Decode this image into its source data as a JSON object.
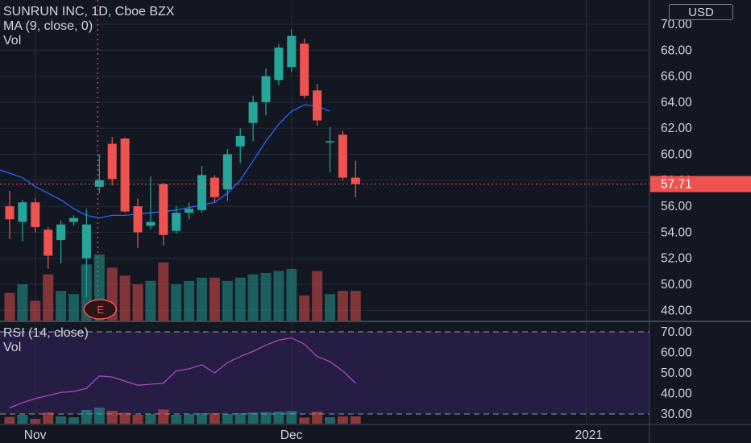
{
  "legend": {
    "title": "SUNRUN INC, 1D, Cboe BZX",
    "ma": "MA (9, close, 0)",
    "vol": "Vol",
    "rsi": "RSI (14, close)",
    "rsi_vol": "Vol"
  },
  "currency": "USD",
  "colors": {
    "background": "#131722",
    "up": "#26a69a",
    "down": "#ef5350",
    "ma": "#2962ff",
    "rsi_line": "#ab47bc",
    "rsi_band": "#2a1f4a",
    "price_marker": "#ef5350",
    "earnings_marker": "#ef5350"
  },
  "earnings_badge": "E",
  "last_price": "57.71",
  "x_axis": {
    "labels": [
      {
        "text": "Nov",
        "bar": 2
      },
      {
        "text": "Dec",
        "bar": 22
      },
      {
        "text": "2021",
        "bar": 45
      }
    ]
  },
  "chart_data": [
    {
      "type": "candlestick",
      "title": "SUNRUN INC, 1D, Cboe BZX",
      "ylim": [
        47,
        71
      ],
      "y_ticks": [
        "48.00",
        "50.00",
        "52.00",
        "54.00",
        "56.00",
        "58.00",
        "60.00",
        "62.00",
        "64.00",
        "66.00",
        "68.00",
        "70.00"
      ],
      "candles": [
        {
          "o": 56.0,
          "h": 57.2,
          "l": 53.5,
          "c": 55.0
        },
        {
          "o": 54.8,
          "h": 56.5,
          "l": 53.3,
          "c": 56.3
        },
        {
          "o": 56.3,
          "h": 56.6,
          "l": 54.0,
          "c": 54.4
        },
        {
          "o": 54.2,
          "h": 54.4,
          "l": 51.2,
          "c": 52.2
        },
        {
          "o": 53.4,
          "h": 54.9,
          "l": 51.6,
          "c": 54.6
        },
        {
          "o": 54.8,
          "h": 55.3,
          "l": 54.5,
          "c": 55.1
        },
        {
          "o": 52.0,
          "h": 55.8,
          "l": 49.0,
          "c": 54.6
        },
        {
          "o": 57.5,
          "h": 60.0,
          "l": 57.0,
          "c": 58.0
        },
        {
          "o": 60.8,
          "h": 61.3,
          "l": 57.6,
          "c": 58.1
        },
        {
          "o": 61.2,
          "h": 61.3,
          "l": 55.5,
          "c": 55.6
        },
        {
          "o": 56.0,
          "h": 56.6,
          "l": 52.8,
          "c": 54.0
        },
        {
          "o": 54.5,
          "h": 58.3,
          "l": 54.2,
          "c": 54.8
        },
        {
          "o": 57.7,
          "h": 57.8,
          "l": 53.0,
          "c": 53.8
        },
        {
          "o": 54.1,
          "h": 56.0,
          "l": 53.9,
          "c": 55.5
        },
        {
          "o": 55.5,
          "h": 56.3,
          "l": 55.0,
          "c": 55.8
        },
        {
          "o": 55.7,
          "h": 59.1,
          "l": 55.5,
          "c": 58.4
        },
        {
          "o": 58.2,
          "h": 58.4,
          "l": 56.3,
          "c": 56.7
        },
        {
          "o": 57.3,
          "h": 60.4,
          "l": 56.4,
          "c": 60.0
        },
        {
          "o": 60.6,
          "h": 62.0,
          "l": 59.3,
          "c": 61.4
        },
        {
          "o": 62.4,
          "h": 64.5,
          "l": 61.0,
          "c": 64.0
        },
        {
          "o": 64.0,
          "h": 66.6,
          "l": 63.0,
          "c": 66.0
        },
        {
          "o": 65.7,
          "h": 68.5,
          "l": 65.3,
          "c": 68.2
        },
        {
          "o": 66.7,
          "h": 69.6,
          "l": 66.3,
          "c": 69.1
        },
        {
          "o": 68.5,
          "h": 68.9,
          "l": 64.3,
          "c": 64.5
        },
        {
          "o": 64.9,
          "h": 65.4,
          "l": 62.2,
          "c": 62.6
        },
        {
          "o": 61.0,
          "h": 62.1,
          "l": 58.6,
          "c": 61.0
        },
        {
          "o": 61.5,
          "h": 61.8,
          "l": 58.0,
          "c": 58.2
        },
        {
          "o": 58.2,
          "h": 59.5,
          "l": 56.7,
          "c": 57.71
        }
      ],
      "ma_values": [
        58.8,
        58.2,
        57.5,
        57.0,
        56.5,
        55.8,
        55.3,
        55.1,
        55.3,
        55.3,
        55.4,
        55.5,
        55.6,
        55.7,
        55.9,
        56.1,
        56.3,
        57.0,
        58.0,
        59.5,
        61.0,
        62.3,
        63.3,
        63.8,
        63.7,
        63.3,
        null,
        null
      ],
      "volume": [
        42,
        55,
        30,
        70,
        45,
        40,
        85,
        100,
        80,
        68,
        55,
        60,
        88,
        55,
        60,
        65,
        65,
        60,
        65,
        70,
        72,
        75,
        78,
        38,
        75,
        40,
        45,
        45
      ]
    },
    {
      "type": "line",
      "title": "RSI (14, close)",
      "ylim": [
        27,
        72
      ],
      "y_ticks": [
        "30.00",
        "40.00",
        "50.00",
        "60.00",
        "70.00"
      ],
      "bands": [
        30,
        70
      ],
      "rsi_values": [
        33.0,
        35.5,
        37.5,
        39.0,
        40.5,
        41.0,
        42.5,
        48.5,
        48.0,
        46.0,
        44.0,
        44.5,
        45.0,
        51.0,
        52.0,
        54.0,
        50.0,
        55.0,
        58.0,
        60.5,
        63.5,
        66.0,
        67.0,
        64.0,
        58.0,
        55.5,
        51.0,
        45.0
      ]
    }
  ]
}
